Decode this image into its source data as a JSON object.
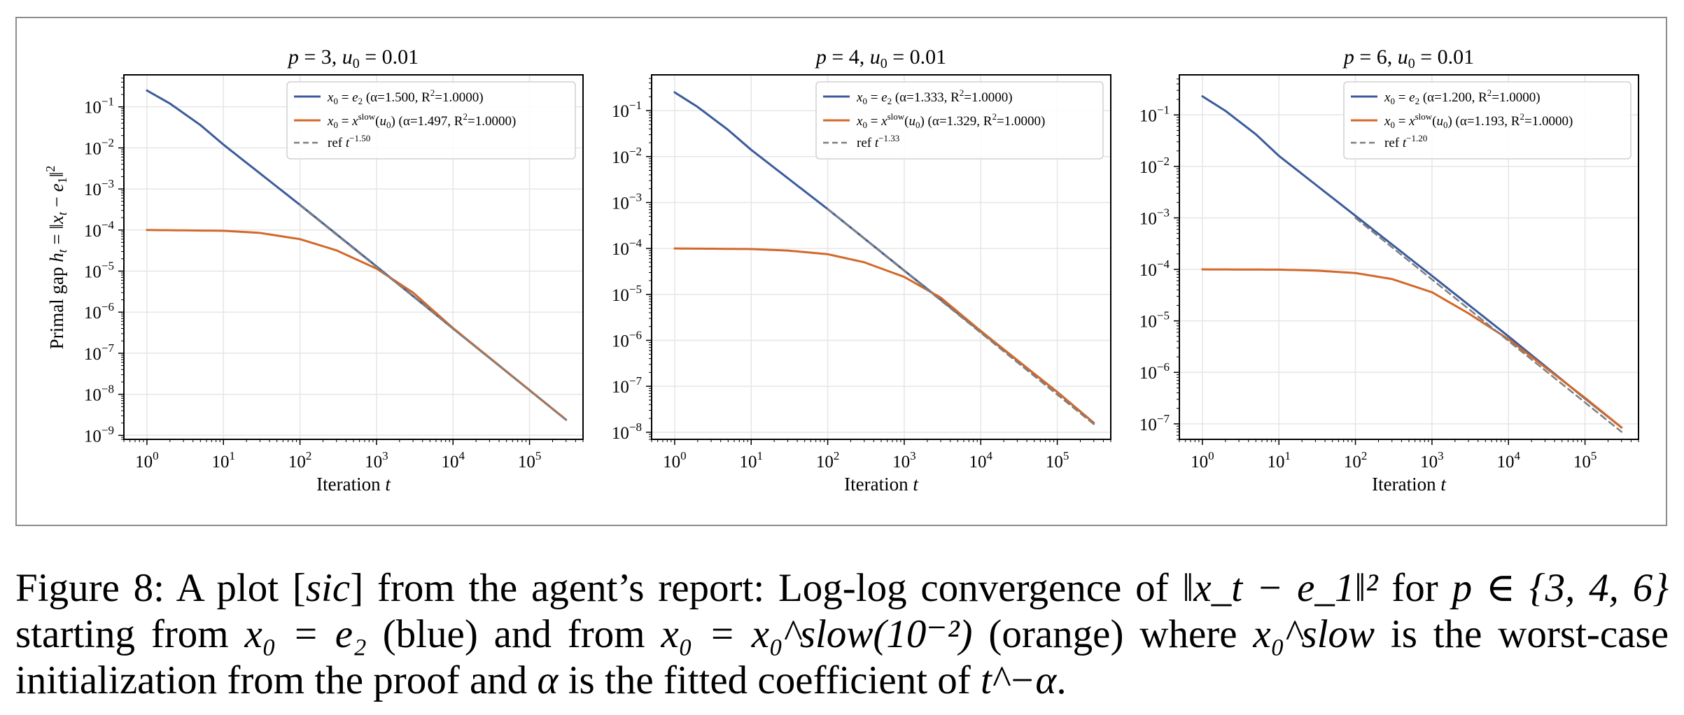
{
  "colors": {
    "blue": "#3b5b9c",
    "orange": "#d2692a",
    "ref": "#7f7f7f",
    "grid": "#e6e6e6",
    "frame": "#8c8c8c"
  },
  "shared": {
    "xlabel": "Iteration t",
    "ylabel": "Primal gap h_t = ||x_t − e_1||²"
  },
  "chart_data": [
    {
      "type": "line",
      "title": "p = 3, u₀ = 0.01",
      "xlabel": "Iteration t",
      "ylabel": "Primal gap h_t = ||x_t − e_1||²",
      "xscale": "log",
      "yscale": "log",
      "xlim": [
        0.5,
        500000
      ],
      "ylim": [
        8e-10,
        0.6
      ],
      "xticks": [
        1,
        10,
        100,
        1000,
        10000,
        100000
      ],
      "yticks": [
        1e-09,
        1e-08,
        1e-07,
        1e-06,
        1e-05,
        0.0001,
        0.001,
        0.01,
        0.1
      ],
      "grid": true,
      "legend_position": "top-right",
      "series": [
        {
          "name": "x0 = e2 (α=1.500, R²=1.0000)",
          "color_key": "blue",
          "style": "solid",
          "x": [
            1,
            2,
            5,
            10,
            100,
            1000,
            10000,
            100000,
            300000
          ],
          "y": [
            0.25,
            0.12,
            0.036,
            0.012,
            0.00041,
            1.3e-05,
            4e-07,
            1.26e-08,
            2.4e-09
          ]
        },
        {
          "name": "x0 = x^slow(u0) (α=1.497, R²=1.0000)",
          "color_key": "orange",
          "style": "solid",
          "x": [
            1,
            10,
            30,
            100,
            300,
            1000,
            3000,
            10000,
            100000,
            300000
          ],
          "y": [
            0.0001,
            9.6e-05,
            8.5e-05,
            6e-05,
            3.2e-05,
            1.15e-05,
            3e-06,
            4.1e-07,
            1.26e-08,
            2.4e-09
          ]
        },
        {
          "name": "ref t^-1.50",
          "color_key": "ref",
          "style": "dashed",
          "x": [
            100,
            300000
          ],
          "y": [
            0.0004,
            2.4e-09
          ]
        }
      ]
    },
    {
      "type": "line",
      "title": "p = 4, u₀ = 0.01",
      "xlabel": "Iteration t",
      "ylabel": "",
      "xscale": "log",
      "yscale": "log",
      "xlim": [
        0.5,
        500000
      ],
      "ylim": [
        7e-09,
        0.6
      ],
      "xticks": [
        1,
        10,
        100,
        1000,
        10000,
        100000
      ],
      "yticks": [
        1e-08,
        1e-07,
        1e-06,
        1e-05,
        0.0001,
        0.001,
        0.01,
        0.1
      ],
      "grid": true,
      "legend_position": "top-right",
      "series": [
        {
          "name": "x0 = e2 (α=1.333, R²=1.0000)",
          "color_key": "blue",
          "style": "solid",
          "x": [
            1,
            2,
            5,
            10,
            100,
            1000,
            10000,
            100000,
            300000
          ],
          "y": [
            0.25,
            0.12,
            0.038,
            0.014,
            0.00072,
            3.3e-05,
            1.55e-06,
            7.5e-08,
            1.6e-08
          ]
        },
        {
          "name": "x0 = x^slow(u0) (α=1.329, R²=1.0000)",
          "color_key": "orange",
          "style": "solid",
          "x": [
            1,
            10,
            30,
            100,
            300,
            1000,
            3000,
            10000,
            100000,
            300000
          ],
          "y": [
            0.0001,
            9.7e-05,
            9e-05,
            7.5e-05,
            5e-05,
            2.4e-05,
            8.5e-06,
            1.6e-06,
            7.5e-08,
            1.6e-08
          ]
        },
        {
          "name": "ref t^-1.33",
          "color_key": "ref",
          "style": "dashed",
          "x": [
            100,
            300000
          ],
          "y": [
            0.00072,
            1.5e-08
          ]
        }
      ]
    },
    {
      "type": "line",
      "title": "p = 6, u₀ = 0.01",
      "xlabel": "Iteration t",
      "ylabel": "",
      "xscale": "log",
      "yscale": "log",
      "xlim": [
        0.5,
        500000
      ],
      "ylim": [
        5e-08,
        0.6
      ],
      "xticks": [
        1,
        10,
        100,
        1000,
        10000,
        100000
      ],
      "yticks": [
        1e-07,
        1e-06,
        1e-05,
        0.0001,
        0.001,
        0.01,
        0.1
      ],
      "grid": true,
      "legend_position": "top-right",
      "series": [
        {
          "name": "x0 = e2 (α=1.200, R²=1.0000)",
          "color_key": "blue",
          "style": "solid",
          "x": [
            1,
            2,
            5,
            10,
            100,
            1000,
            10000,
            100000,
            300000
          ],
          "y": [
            0.23,
            0.12,
            0.042,
            0.016,
            0.0011,
            7.5e-05,
            5e-06,
            3.1e-07,
            8.5e-08
          ]
        },
        {
          "name": "x0 = x^slow(u0) (α=1.193, R²=1.0000)",
          "color_key": "orange",
          "style": "solid",
          "x": [
            1,
            10,
            30,
            100,
            300,
            1000,
            3000,
            10000,
            100000,
            300000
          ],
          "y": [
            0.0001,
            9.9e-05,
            9.5e-05,
            8.5e-05,
            6.5e-05,
            3.6e-05,
            1.4e-05,
            4.4e-06,
            3.2e-07,
            8.5e-08
          ]
        },
        {
          "name": "ref t^-1.20",
          "color_key": "ref",
          "style": "dashed",
          "x": [
            100,
            300000
          ],
          "y": [
            0.001,
            7e-08
          ]
        }
      ]
    }
  ],
  "legend_labels": [
    [
      "α=1.500, R",
      "=1.0000)",
      "α=1.497, R",
      "=1.0000)",
      "1.50"
    ],
    [
      "α=1.333, R",
      "=1.0000)",
      "α=1.329, R",
      "=1.0000)",
      "1.33"
    ],
    [
      "α=1.200, R",
      "=1.0000)",
      "α=1.193, R",
      "=1.0000)",
      "1.20"
    ]
  ],
  "caption": {
    "prefix": "Figure 8: A plot [",
    "sic": "sic",
    "part1": "] from the agent’s report: Log-log convergence of ",
    "norm_expr": "‖x_t − e_1‖²",
    "for_p": " for ",
    "p_set": "p ∈ {3, 4, 6}",
    "part2": " starting from ",
    "x0_e2": "x₀ = e₂",
    "part3": " (blue) and from ",
    "x0_slow": "x₀ = x₀^slow(10⁻²)",
    "part4": " (orange) where ",
    "x0_slow_def": "x₀^slow",
    "part5": " is the worst-case initialization from the proof and ",
    "alpha": "α",
    "part6": " is the fitted coefficient of ",
    "t_alpha": "t^−α",
    "end": "."
  }
}
